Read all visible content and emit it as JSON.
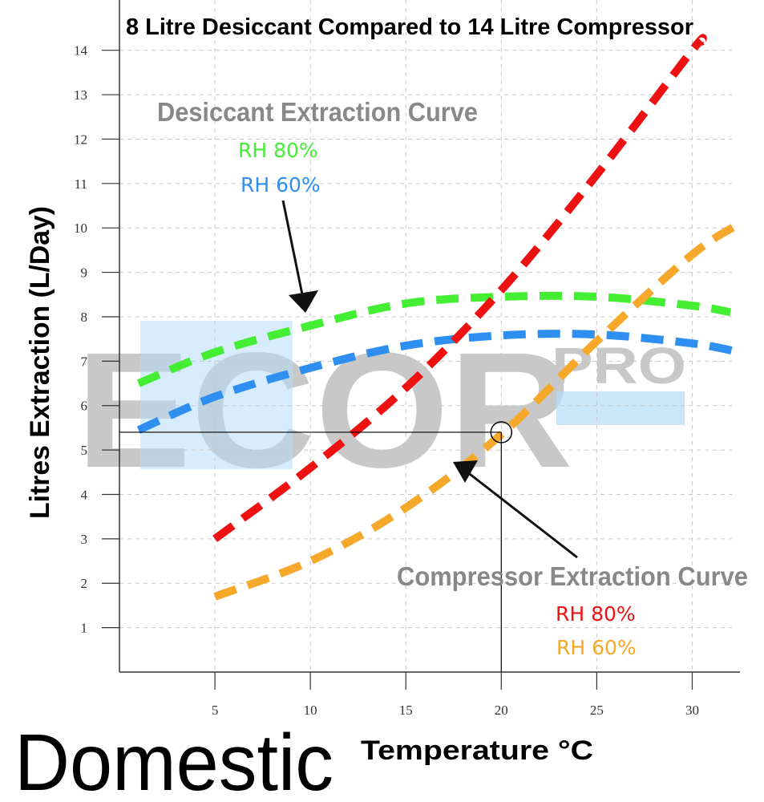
{
  "caption": "Domestic",
  "watermark": {
    "main": "ECOR",
    "sub": "PRO",
    "color": "#bfbfbf",
    "accent": "#a9d5f7"
  },
  "annotations": {
    "desiccant_heading": "Desiccant Extraction Curve",
    "compressor_heading": "Compressor Extraction Curve"
  },
  "chart_data": {
    "type": "line",
    "title": "8 Litre Desiccant Compared to 14 Litre Compressor",
    "xlabel": "Temperature °C",
    "ylabel": "Litres Extraction (L/Day)",
    "xlim": [
      0,
      32.5
    ],
    "ylim": [
      0,
      14.5
    ],
    "xticks": [
      5,
      10,
      15,
      20,
      25,
      30
    ],
    "yticks": [
      1,
      2,
      3,
      4,
      5,
      6,
      7,
      8,
      9,
      10,
      11,
      12,
      13,
      14
    ],
    "grid": true,
    "series": [
      {
        "name": "RH 80%",
        "group": "desiccant",
        "color": "#44ee33",
        "x": [
          1,
          5,
          10,
          15,
          20,
          25,
          30,
          32
        ],
        "y": [
          6.5,
          7.2,
          7.8,
          8.3,
          8.45,
          8.45,
          8.25,
          8.1
        ]
      },
      {
        "name": "RH 60%",
        "group": "desiccant",
        "color": "#2e8ff0",
        "x": [
          1,
          5,
          10,
          15,
          20,
          25,
          30,
          32.5
        ],
        "y": [
          5.45,
          6.2,
          6.85,
          7.35,
          7.58,
          7.6,
          7.4,
          7.2
        ]
      },
      {
        "name": "RH 80%",
        "group": "compressor",
        "color": "#ee1111",
        "x": [
          5,
          10,
          15,
          20,
          25,
          30,
          30.5
        ],
        "y": [
          3.0,
          4.6,
          6.4,
          8.6,
          11.2,
          14.0,
          14.2
        ]
      },
      {
        "name": "RH 60%",
        "group": "compressor",
        "color": "#f5a82a",
        "x": [
          5,
          10,
          15,
          20,
          25,
          30,
          32.5
        ],
        "y": [
          1.7,
          2.5,
          3.7,
          5.35,
          7.45,
          9.4,
          10.1
        ]
      }
    ],
    "reference_point": {
      "x": 20,
      "y": 5.4
    }
  }
}
